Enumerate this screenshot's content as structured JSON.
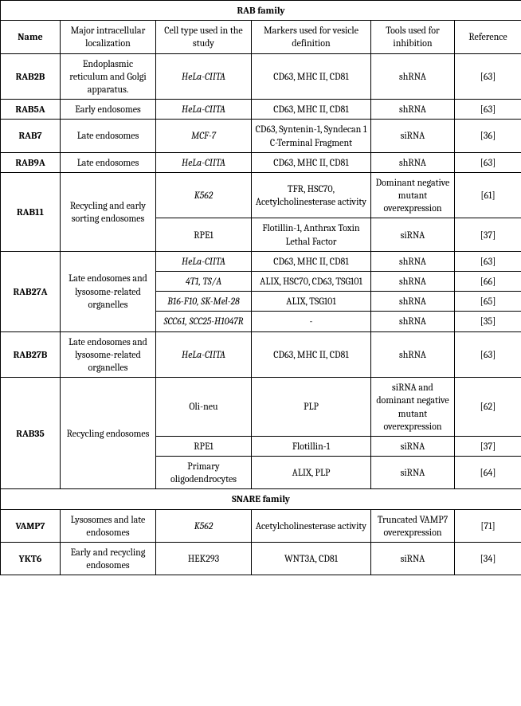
{
  "sections": [
    {
      "title": "RAB family",
      "useHeader": true,
      "header": {
        "name": "Name",
        "local": "Major intracellular localization",
        "cell": "Cell type used in the study",
        "markers": "Markers used for vesicle definition",
        "tools": "Tools used for inhibition",
        "ref": "Reference"
      },
      "groups": [
        {
          "name": "RAB2B",
          "local": "Endoplasmic reticulum and Golgi apparatus.",
          "rows": [
            {
              "cell": "HeLa-CIITA",
              "cellItalic": true,
              "markers": "CD63, MHC II, CD81",
              "tools": "shRNA",
              "ref": "[63]"
            }
          ]
        },
        {
          "name": "RAB5A",
          "local": "Early endosomes",
          "rows": [
            {
              "cell": "HeLa-CIITA",
              "cellItalic": true,
              "markers": "CD63, MHC II, CD81",
              "tools": "shRNA",
              "ref": "[63]"
            }
          ]
        },
        {
          "name": "RAB7",
          "local": "Late endosomes",
          "rows": [
            {
              "cell": "MCF-7",
              "cellItalic": true,
              "markers": "CD63, Syntenin-1, Syndecan 1 C-Terminal Fragment",
              "tools": "siRNA",
              "ref": "[36]"
            }
          ]
        },
        {
          "name": "RAB9A",
          "local": "Late endosomes",
          "rows": [
            {
              "cell": "HeLa-CIITA",
              "cellItalic": true,
              "markers": "CD63, MHC II, CD81",
              "tools": "shRNA",
              "ref": "[63]"
            }
          ]
        },
        {
          "name": "RAB11",
          "local": "Recycling and early sorting endosomes",
          "rows": [
            {
              "cell": "K562",
              "cellItalic": true,
              "markers": "TFR, HSC70, Acetylcholinesterase activity",
              "tools": "Dominant negative mutant overexpression",
              "ref": "[61]"
            },
            {
              "cell": "RPE1",
              "cellItalic": false,
              "markers": "Flotillin-1, Anthrax Toxin Lethal Factor",
              "tools": "siRNA",
              "ref": "[37]"
            }
          ]
        },
        {
          "name": "RAB27A",
          "local": "Late endosomes and lysosome-related organelles",
          "rows": [
            {
              "cell": "HeLa-CIITA",
              "cellItalic": true,
              "markers": "CD63, MHC II, CD81",
              "tools": "shRNA",
              "ref": "[63]"
            },
            {
              "cell": "4T1, TS/A",
              "cellItalic": true,
              "markers": "ALIX, HSC70, CD63, TSG101",
              "tools": "shRNA",
              "ref": "[66]"
            },
            {
              "cell": "B16-F10, SK-Mel-28",
              "cellItalic": true,
              "markers": "ALIX, TSG101",
              "tools": "shRNA",
              "ref": "[65]"
            },
            {
              "cell": "SCC61, SCC25-H1047R",
              "cellItalic": true,
              "markers": "-",
              "tools": "shRNA",
              "ref": "[35]"
            }
          ]
        },
        {
          "name": "RAB27B",
          "local": "Late endosomes and lysosome-related organelles",
          "rows": [
            {
              "cell": "HeLa-CIITA",
              "cellItalic": true,
              "markers": "CD63, MHC II, CD81",
              "tools": "shRNA",
              "ref": "[63]"
            }
          ]
        },
        {
          "name": "RAB35",
          "local": "Recycling endosomes",
          "rows": [
            {
              "cell": "Oli-neu",
              "cellItalic": false,
              "markers": "PLP",
              "tools": "siRNA and dominant negative mutant overexpression",
              "ref": "[62]"
            },
            {
              "cell": "RPE1",
              "cellItalic": false,
              "markers": "Flotillin-1",
              "tools": "siRNA",
              "ref": "[37]"
            },
            {
              "cell": "Primary oligodendrocytes",
              "cellItalic": false,
              "markers": "ALIX, PLP",
              "tools": "siRNA",
              "ref": "[64]"
            }
          ]
        }
      ]
    },
    {
      "title": "SNARE family",
      "useHeader": false,
      "groups": [
        {
          "name": "VAMP7",
          "local": "Lysosomes and late endosomes",
          "rows": [
            {
              "cell": "K562",
              "cellItalic": true,
              "markers": "Acetylcholinesterase activity",
              "tools": "Truncated VAMP7 overexpression",
              "ref": "[71]"
            }
          ]
        },
        {
          "name": "YKT6",
          "local": "Early and recycling endosomes",
          "rows": [
            {
              "cell": "HEK293",
              "cellItalic": false,
              "markers": "WNT3A, CD81",
              "tools": "siRNA",
              "ref": "[34]"
            }
          ]
        }
      ]
    }
  ]
}
